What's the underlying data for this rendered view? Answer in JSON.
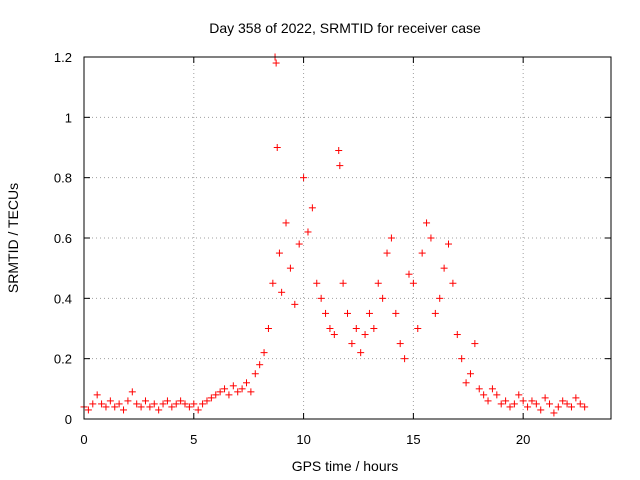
{
  "chart_data": {
    "type": "scatter",
    "title": "Day 358 of 2022, SRMTID for receiver case",
    "xlabel": "GPS time / hours",
    "ylabel": "SRMTID / TECUs",
    "xlim": [
      0,
      24
    ],
    "ylim": [
      0,
      1.2
    ],
    "xticks": [
      0,
      5,
      10,
      15,
      20
    ],
    "xtick_labels": [
      "0",
      "5",
      "10",
      "15",
      "20"
    ],
    "yticks": [
      0,
      0.2,
      0.4,
      0.6,
      0.8,
      1.0,
      1.2
    ],
    "ytick_labels": [
      "0",
      "0.2",
      "0.4",
      "0.6",
      "0.8",
      "1",
      "1.2"
    ],
    "grid": true,
    "marker": "+",
    "series_color": "#ff0000",
    "series": [
      {
        "name": "SRMTID",
        "x": [
          0.0,
          0.2,
          0.4,
          0.6,
          0.8,
          1.0,
          1.2,
          1.4,
          1.6,
          1.8,
          2.0,
          2.2,
          2.4,
          2.6,
          2.8,
          3.0,
          3.2,
          3.4,
          3.6,
          3.8,
          4.0,
          4.2,
          4.4,
          4.6,
          4.8,
          5.0,
          5.2,
          5.4,
          5.6,
          5.8,
          6.0,
          6.2,
          6.4,
          6.6,
          6.8,
          7.0,
          7.2,
          7.4,
          7.6,
          7.8,
          8.0,
          8.2,
          8.4,
          8.6,
          8.7,
          8.75,
          8.8,
          8.9,
          9.0,
          9.2,
          9.4,
          9.6,
          9.8,
          10.0,
          10.2,
          10.4,
          10.6,
          10.8,
          11.0,
          11.2,
          11.4,
          11.6,
          11.65,
          11.8,
          12.0,
          12.2,
          12.4,
          12.6,
          12.8,
          13.0,
          13.2,
          13.4,
          13.6,
          13.8,
          14.0,
          14.2,
          14.4,
          14.6,
          14.8,
          15.0,
          15.2,
          15.4,
          15.6,
          15.8,
          16.0,
          16.2,
          16.4,
          16.6,
          16.8,
          17.0,
          17.2,
          17.4,
          17.6,
          17.8,
          18.0,
          18.2,
          18.4,
          18.6,
          18.8,
          19.0,
          19.2,
          19.4,
          19.6,
          19.8,
          20.0,
          20.2,
          20.4,
          20.6,
          20.8,
          21.0,
          21.2,
          21.4,
          21.6,
          21.8,
          22.0,
          22.2,
          22.4,
          22.6,
          22.8
        ],
        "y": [
          0.04,
          0.03,
          0.05,
          0.08,
          0.05,
          0.04,
          0.06,
          0.04,
          0.05,
          0.03,
          0.06,
          0.09,
          0.05,
          0.04,
          0.06,
          0.04,
          0.05,
          0.03,
          0.05,
          0.06,
          0.04,
          0.05,
          0.06,
          0.05,
          0.04,
          0.05,
          0.03,
          0.05,
          0.06,
          0.07,
          0.08,
          0.09,
          0.1,
          0.08,
          0.11,
          0.09,
          0.1,
          0.12,
          0.09,
          0.15,
          0.18,
          0.22,
          0.3,
          0.45,
          1.2,
          1.18,
          0.9,
          0.55,
          0.42,
          0.65,
          0.5,
          0.38,
          0.58,
          0.8,
          0.62,
          0.7,
          0.45,
          0.4,
          0.35,
          0.3,
          0.28,
          0.89,
          0.84,
          0.45,
          0.35,
          0.25,
          0.3,
          0.22,
          0.28,
          0.35,
          0.3,
          0.45,
          0.4,
          0.55,
          0.6,
          0.35,
          0.25,
          0.2,
          0.48,
          0.45,
          0.3,
          0.55,
          0.65,
          0.6,
          0.35,
          0.4,
          0.5,
          0.58,
          0.45,
          0.28,
          0.2,
          0.12,
          0.15,
          0.25,
          0.1,
          0.08,
          0.06,
          0.1,
          0.08,
          0.05,
          0.06,
          0.04,
          0.05,
          0.08,
          0.06,
          0.04,
          0.06,
          0.05,
          0.03,
          0.07,
          0.05,
          0.02,
          0.04,
          0.06,
          0.05,
          0.04,
          0.07,
          0.05,
          0.04
        ]
      }
    ]
  }
}
